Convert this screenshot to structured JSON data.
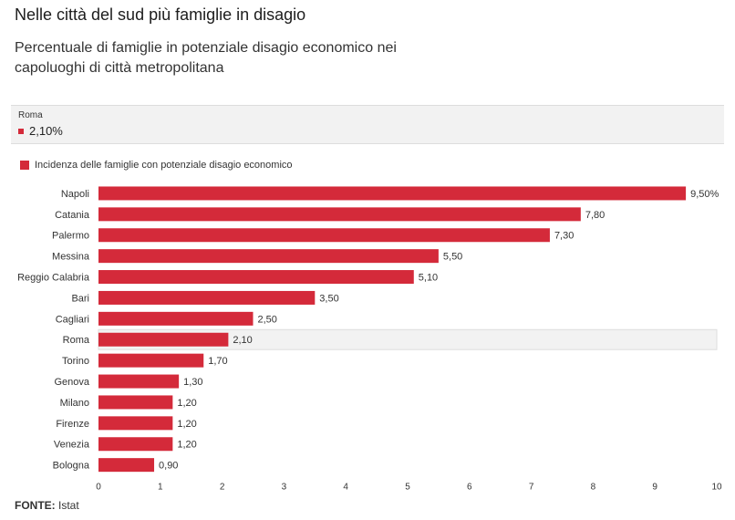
{
  "chart_data": {
    "type": "bar",
    "orientation": "horizontal",
    "title": "Nelle città del sud più famiglie in disagio",
    "subtitle": "Percentuale di famiglie in potenziale disagio economico nei capoluoghi di città metropolitana",
    "tooltip": {
      "title": "Roma",
      "label": "2,10%"
    },
    "categories": [
      "Napoli",
      "Catania",
      "Palermo",
      "Messina",
      "Reggio Calabria",
      "Bari",
      "Cagliari",
      "Roma",
      "Torino",
      "Genova",
      "Milano",
      "Firenze",
      "Venezia",
      "Bologna"
    ],
    "series": [
      {
        "name": "Incidenza delle famiglie con potenziale disagio economico",
        "color": "#d42a3a",
        "values": [
          9.5,
          7.8,
          7.3,
          5.5,
          5.1,
          3.5,
          2.5,
          2.1,
          1.7,
          1.3,
          1.2,
          1.2,
          1.2,
          0.9
        ],
        "value_labels": [
          "9,50%",
          "7,80",
          "7,30",
          "5,50",
          "5,10",
          "3,50",
          "2,50",
          "2,10",
          "1,70",
          "1,30",
          "1,20",
          "1,20",
          "1,20",
          "0,90"
        ]
      }
    ],
    "xlim": [
      0,
      10
    ],
    "xticks": [
      0,
      1,
      2,
      3,
      4,
      5,
      6,
      7,
      8,
      9,
      10
    ],
    "source_label": "FONTE:",
    "source": "Istat"
  }
}
